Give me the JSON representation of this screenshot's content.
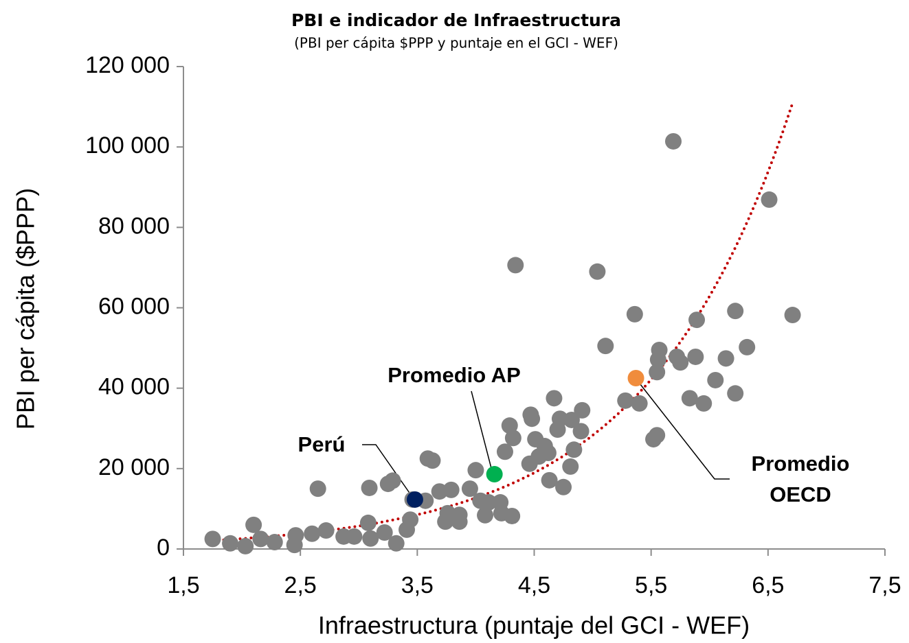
{
  "chart_data": {
    "type": "scatter",
    "title": "PBI e indicador de Infraestructura",
    "subtitle": "(PBI per cápita $PPP y puntaje en el GCI - WEF)",
    "x_label": "Infraestructura (puntaje del GCI - WEF)",
    "y_label": "PBI per cápita ($PPP)",
    "xlim": [
      1.5,
      7.5
    ],
    "xticks": [
      {
        "value": 1.5,
        "label": "1,5"
      },
      {
        "value": 2.5,
        "label": "2,5"
      },
      {
        "value": 3.5,
        "label": "3,5"
      },
      {
        "value": 4.5,
        "label": "4,5"
      },
      {
        "value": 5.5,
        "label": "5,5"
      },
      {
        "value": 6.5,
        "label": "6,5"
      },
      {
        "value": 7.5,
        "label": "7,5"
      }
    ],
    "ylim": [
      0,
      120000
    ],
    "yticks": [
      0,
      {
        "value": 20000,
        "label": "20 000"
      },
      {
        "value": 40000,
        "label": "40 000"
      },
      {
        "value": 60000,
        "label": "60 000"
      },
      {
        "value": 80000,
        "label": "80 000"
      },
      {
        "value": 100000,
        "label": "100 000"
      },
      {
        "value": 120000,
        "label": "120 000"
      }
    ],
    "trendline": {
      "kind": "exponential",
      "color": "#c00000"
    },
    "series": [
      {
        "color": "#808080",
        "x": [
          1.75,
          1.9,
          2.03,
          2.1,
          2.16,
          2.28,
          2.45,
          2.46,
          2.6,
          2.65,
          2.72,
          2.87,
          2.96,
          3.09,
          3.08,
          3.1,
          3.22,
          3.25,
          3.29,
          3.32,
          3.41,
          3.44,
          3.46,
          3.57,
          3.59,
          3.63,
          3.69,
          3.79,
          3.74,
          3.76,
          3.86,
          3.86,
          3.95,
          4.0,
          4.04,
          4.08,
          4.11,
          4.21,
          4.22,
          4.31,
          4.25,
          4.29,
          4.32,
          4.34,
          4.46,
          4.47,
          4.48,
          4.51,
          4.54,
          4.59,
          4.63,
          4.62,
          4.67,
          4.7,
          4.72,
          4.75,
          4.81,
          4.82,
          4.84,
          4.9,
          4.91,
          5.04,
          5.11,
          5.28,
          5.36,
          5.4,
          5.52,
          5.55,
          5.55,
          5.56,
          5.57,
          5.69,
          5.72,
          5.75,
          5.83,
          5.88,
          5.89,
          5.95,
          6.05,
          6.14,
          6.22,
          6.22,
          6.32,
          6.51,
          6.71
        ],
        "values": [
          2500,
          1400,
          700,
          6000,
          2500,
          1700,
          1000,
          3400,
          3800,
          15000,
          4600,
          3100,
          3100,
          15200,
          6500,
          2600,
          4100,
          16200,
          17000,
          1400,
          4800,
          7300,
          12300,
          12000,
          22500,
          22000,
          14300,
          14700,
          6800,
          8900,
          6800,
          8500,
          15000,
          19600,
          12000,
          8400,
          11600,
          11600,
          8900,
          8200,
          24200,
          30700,
          27600,
          70600,
          21200,
          33400,
          32400,
          27300,
          23000,
          25600,
          17100,
          23900,
          37500,
          29700,
          32400,
          15400,
          20500,
          32100,
          24700,
          29300,
          34500,
          69000,
          50500,
          36900,
          58400,
          36200,
          27300,
          28300,
          44000,
          47100,
          49500,
          101400,
          47800,
          46400,
          37500,
          47800,
          57000,
          36200,
          42000,
          47400,
          59200,
          38700,
          50200,
          86900,
          58200
        ]
      },
      {
        "color": "#002060",
        "x": [
          3.48
        ],
        "values": [
          12300
        ]
      },
      {
        "color": "#00b050",
        "x": [
          4.16
        ],
        "values": [
          18600
        ]
      },
      {
        "color": "#f08c3c",
        "x": [
          5.37
        ],
        "values": [
          42500
        ]
      }
    ],
    "annotations": [
      {
        "lines": [
          "Perú"
        ]
      },
      {
        "lines": [
          "Promedio AP"
        ]
      },
      {
        "lines": [
          "Promedio",
          "OECD"
        ]
      }
    ]
  }
}
